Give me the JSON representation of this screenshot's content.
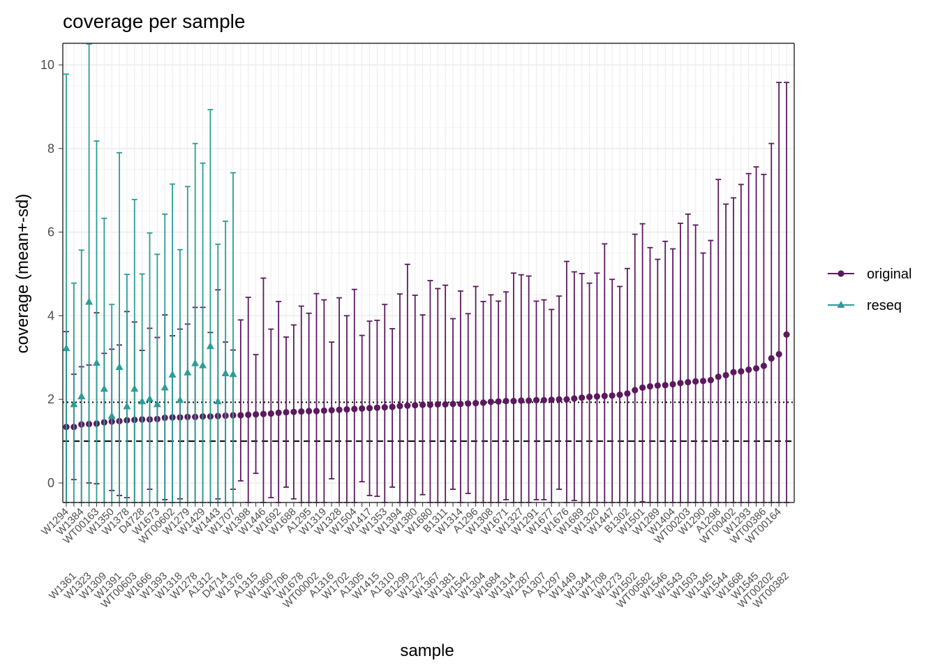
{
  "chart_data": {
    "type": "scatter",
    "title": "coverage per sample",
    "xlabel": "sample",
    "ylabel": "coverage (mean+-sd)",
    "ylim": [
      -0.48,
      10.5
    ],
    "yticks": [
      0,
      2,
      4,
      6,
      8,
      10
    ],
    "grid": true,
    "legend": "right",
    "reference_lines": [
      {
        "y": 1.0,
        "style": "dashed",
        "color": "#000000"
      },
      {
        "y": 1.93,
        "style": "dotted",
        "color": "#000000"
      }
    ],
    "categories": [
      "W1294",
      "W1361",
      "W1384",
      "W1323",
      "WT00163",
      "W1309",
      "W1350",
      "W1391",
      "W1378",
      "WT00603",
      "D4728",
      "W1666",
      "W1673",
      "W1393",
      "WT00602",
      "W1318",
      "W1279",
      "W1278",
      "W1429",
      "A1312",
      "W1443",
      "D4714",
      "W1707",
      "W1376",
      "W1398",
      "A1315",
      "W1446",
      "W1360",
      "W1692",
      "W1706",
      "W1688",
      "W1678",
      "A1295",
      "WT00002",
      "W1319",
      "A1316",
      "W1328",
      "W1702",
      "W1504",
      "A1305",
      "W1417",
      "W1415",
      "W1353",
      "A1310",
      "W1394",
      "B1299",
      "W1380",
      "W1272",
      "W1680",
      "W1367",
      "B1311",
      "W1381",
      "W1314",
      "W1542",
      "A1296",
      "W1304",
      "W1308",
      "W1684",
      "W1671",
      "W1314",
      "W1327",
      "W1287",
      "W1291",
      "A1307",
      "W1677",
      "A1297",
      "W1676",
      "W1449",
      "W1689",
      "W1344",
      "W1320",
      "W1708",
      "W1447",
      "W1273",
      "B1302",
      "W1502",
      "W1501",
      "WT00582",
      "W1289",
      "W1546",
      "W1404",
      "W1543",
      "WT00203",
      "W1503",
      "W1290",
      "W1345",
      "A1298",
      "W1544",
      "WT00402",
      "W1668",
      "W1293",
      "W1545",
      "WT00386",
      "WT00202",
      "WT00164",
      "WT00382"
    ],
    "series": [
      {
        "name": "original",
        "color": "#5b1a5e",
        "mean": [
          1.34,
          1.34,
          1.4,
          1.41,
          1.42,
          1.45,
          1.47,
          1.48,
          1.5,
          1.51,
          1.52,
          1.52,
          1.53,
          1.56,
          1.57,
          1.57,
          1.58,
          1.58,
          1.59,
          1.59,
          1.6,
          1.61,
          1.62,
          1.62,
          1.63,
          1.64,
          1.65,
          1.66,
          1.68,
          1.69,
          1.7,
          1.71,
          1.72,
          1.72,
          1.73,
          1.74,
          1.75,
          1.76,
          1.77,
          1.78,
          1.79,
          1.8,
          1.81,
          1.82,
          1.84,
          1.85,
          1.86,
          1.87,
          1.87,
          1.88,
          1.88,
          1.89,
          1.89,
          1.9,
          1.91,
          1.92,
          1.94,
          1.95,
          1.96,
          1.96,
          1.97,
          1.97,
          1.98,
          1.98,
          1.99,
          2.0,
          2.0,
          2.02,
          2.04,
          2.06,
          2.07,
          2.08,
          2.09,
          2.11,
          2.14,
          2.22,
          2.28,
          2.31,
          2.33,
          2.34,
          2.36,
          2.39,
          2.41,
          2.43,
          2.44,
          2.46,
          2.54,
          2.58,
          2.65,
          2.67,
          2.71,
          2.74,
          2.8,
          2.98,
          3.08,
          3.55
        ],
        "sd_low": [
          -0.48,
          0.08,
          -0.48,
          0.0,
          -0.02,
          -0.48,
          -0.18,
          -0.3,
          -0.35,
          -0.48,
          -0.48,
          -0.15,
          -0.48,
          -0.4,
          -0.48,
          -0.38,
          -0.48,
          -0.48,
          -0.48,
          -0.48,
          -0.38,
          -0.48,
          -0.15,
          0.05,
          -0.48,
          0.23,
          -0.48,
          -0.35,
          -0.48,
          -0.1,
          -0.38,
          -0.48,
          -0.48,
          -0.48,
          -0.48,
          0.1,
          -0.48,
          -0.48,
          -0.48,
          0.03,
          -0.3,
          -0.32,
          -0.48,
          -0.1,
          -0.48,
          -0.48,
          -0.48,
          -0.28,
          -0.48,
          -0.48,
          -0.48,
          -0.15,
          -0.48,
          -0.25,
          -0.48,
          -0.48,
          -0.48,
          -0.48,
          -0.4,
          -0.48,
          -0.48,
          -0.48,
          -0.4,
          -0.4,
          -0.48,
          -0.15,
          -0.48,
          -0.42,
          -0.48,
          -0.48,
          -0.48,
          -0.48,
          -0.48,
          -0.48,
          -0.48,
          -0.48,
          -0.45,
          -0.48,
          -0.48,
          -0.48,
          -0.48,
          -0.48,
          -0.48,
          -0.48,
          -0.48,
          -0.48,
          -0.48,
          -0.48,
          -0.48,
          -0.48,
          -0.48,
          -0.48,
          -0.48,
          -0.48,
          -0.48,
          -0.48
        ],
        "sd_high": [
          3.62,
          2.6,
          2.78,
          2.82,
          4.07,
          3.1,
          3.2,
          3.3,
          4.1,
          3.85,
          3.17,
          3.7,
          3.48,
          4.02,
          3.52,
          3.68,
          3.8,
          4.2,
          4.2,
          3.6,
          4.62,
          3.37,
          3.18,
          3.9,
          4.44,
          3.07,
          4.9,
          3.68,
          4.34,
          3.49,
          3.78,
          4.23,
          4.06,
          4.53,
          4.38,
          3.37,
          4.43,
          4.0,
          4.63,
          3.53,
          3.87,
          3.89,
          4.27,
          3.69,
          4.52,
          5.23,
          4.49,
          4.02,
          4.84,
          4.65,
          4.73,
          3.93,
          4.59,
          4.05,
          4.7,
          4.34,
          4.5,
          4.35,
          4.57,
          5.02,
          4.98,
          4.95,
          4.35,
          4.38,
          4.15,
          4.47,
          5.3,
          5.05,
          5.01,
          4.78,
          5.02,
          5.72,
          4.87,
          4.7,
          5.13,
          5.95,
          6.2,
          5.63,
          5.35,
          5.78,
          5.6,
          6.21,
          6.43,
          6.17,
          5.5,
          5.8,
          7.26,
          6.67,
          6.82,
          7.14,
          7.4,
          7.56,
          7.38,
          8.12,
          9.58,
          9.58
        ]
      },
      {
        "name": "reseq",
        "color": "#2a9d96",
        "index": [
          0,
          1,
          2,
          3,
          4,
          5,
          6,
          7,
          8,
          9,
          10,
          11,
          12,
          13,
          14,
          15,
          16,
          17,
          18,
          19,
          20,
          21,
          22
        ],
        "mean": [
          3.22,
          1.88,
          2.07,
          4.33,
          2.87,
          2.25,
          1.6,
          2.77,
          1.83,
          2.25,
          1.95,
          2.01,
          1.88,
          2.28,
          2.59,
          1.98,
          2.64,
          2.86,
          2.81,
          3.27,
          1.95,
          2.62,
          2.6
        ],
        "sd_low": [
          -0.48,
          -0.48,
          -0.48,
          -0.48,
          -0.48,
          -0.48,
          -0.48,
          -0.48,
          -0.48,
          -0.48,
          -0.48,
          -0.48,
          -0.48,
          -0.48,
          -0.48,
          -0.48,
          -0.48,
          -0.48,
          -0.48,
          -0.48,
          -0.48,
          -0.48,
          -0.48
        ],
        "sd_high": [
          9.78,
          4.78,
          5.57,
          10.5,
          8.18,
          6.33,
          4.27,
          7.9,
          4.99,
          6.78,
          5.0,
          5.98,
          5.47,
          6.43,
          7.15,
          5.58,
          7.09,
          8.12,
          7.65,
          8.93,
          5.71,
          6.26,
          7.42
        ]
      }
    ]
  }
}
